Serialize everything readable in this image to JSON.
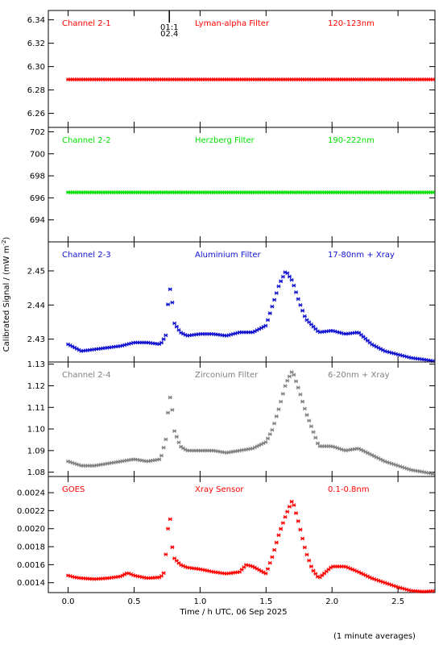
{
  "ylabel": "Calibrated Signal / (mW m",
  "ylabel_sup": "-2",
  "ylabel_end": ")",
  "xlabel": "Time / h UTC, 06 Sep 2025",
  "footnote": "(1 minute averages)",
  "event_marker": {
    "x": 0.767,
    "label1": "01:1",
    "label2": "02.4"
  },
  "xaxis": {
    "min": -0.15,
    "max": 2.78,
    "ticks": [
      0.0,
      0.5,
      1.0,
      1.5,
      2.0,
      2.5
    ],
    "tick_labels": [
      "0.0",
      "0.5",
      "1.0",
      "1.5",
      "2.0",
      "2.5"
    ]
  },
  "chart_data": [
    {
      "type": "scatter",
      "label": "Channel 2-1",
      "filter": "Lyman-alpha Filter",
      "band": "120-123nm",
      "color": "#ff0000",
      "ylim": [
        6.248,
        6.348
      ],
      "yticks": [
        6.26,
        6.28,
        6.3,
        6.32,
        6.34
      ],
      "ytick_labels": [
        "6.26",
        "6.28",
        "6.30",
        "6.32",
        "6.34"
      ],
      "series": [
        {
          "x": [
            0.0,
            2.78
          ],
          "y": [
            6.289,
            6.289
          ]
        }
      ]
    },
    {
      "type": "scatter",
      "label": "Channel 2-2",
      "filter": "Herzberg Filter",
      "band": "190-222nm",
      "color": "#00e000",
      "ylim": [
        692.0,
        702.4
      ],
      "yticks": [
        694,
        696,
        698,
        700,
        702
      ],
      "ytick_labels": [
        "694",
        "696",
        "698",
        "700",
        "702"
      ],
      "series": [
        {
          "x": [
            0.0,
            2.78
          ],
          "y": [
            696.5,
            696.5
          ]
        }
      ]
    },
    {
      "type": "scatter",
      "label": "Channel 2-3",
      "filter": "Aluminium Filter",
      "band": "17-80nm + Xray",
      "color": "#1010d0",
      "ylim": [
        2.4233,
        2.4585
      ],
      "yticks": [
        2.43,
        2.44,
        2.45
      ],
      "ytick_labels": [
        "2.43",
        "2.44",
        "2.45"
      ],
      "series": [
        {
          "x": [
            0.0,
            0.05,
            0.1,
            0.2,
            0.3,
            0.4,
            0.5,
            0.6,
            0.7,
            0.74,
            0.76,
            0.78,
            0.8,
            0.85,
            0.9,
            1.0,
            1.1,
            1.2,
            1.3,
            1.4,
            1.5,
            1.55,
            1.6,
            1.65,
            1.7,
            1.75,
            1.8,
            1.9,
            2.0,
            2.1,
            2.2,
            2.3,
            2.4,
            2.5,
            2.6,
            2.7,
            2.78
          ],
          "y": [
            2.4285,
            2.4275,
            2.4265,
            2.427,
            2.4275,
            2.428,
            2.429,
            2.429,
            2.4285,
            2.431,
            2.442,
            2.446,
            2.435,
            2.432,
            2.431,
            2.4315,
            2.4315,
            2.431,
            2.432,
            2.432,
            2.434,
            2.44,
            2.446,
            2.45,
            2.447,
            2.441,
            2.436,
            2.432,
            2.4325,
            2.4315,
            2.432,
            2.4285,
            2.4265,
            2.4255,
            2.4245,
            2.424,
            2.4235
          ]
        }
      ]
    },
    {
      "type": "scatter",
      "label": "Channel 2-4",
      "filter": "Zirconium Filter",
      "band": "6-20nm + Xray",
      "color": "#808080",
      "ylim": [
        1.078,
        1.131
      ],
      "yticks": [
        1.08,
        1.09,
        1.1,
        1.11,
        1.12,
        1.13
      ],
      "ytick_labels": [
        "1.08",
        "1.09",
        "1.10",
        "1.11",
        "1.12",
        "1.13"
      ],
      "series": [
        {
          "x": [
            0.0,
            0.05,
            0.1,
            0.2,
            0.3,
            0.4,
            0.5,
            0.6,
            0.7,
            0.74,
            0.76,
            0.78,
            0.8,
            0.85,
            0.9,
            1.0,
            1.1,
            1.2,
            1.3,
            1.4,
            1.5,
            1.55,
            1.6,
            1.65,
            1.7,
            1.75,
            1.8,
            1.9,
            2.0,
            2.1,
            2.2,
            2.3,
            2.4,
            2.5,
            2.6,
            2.7,
            2.78
          ],
          "y": [
            1.085,
            1.084,
            1.083,
            1.083,
            1.084,
            1.085,
            1.086,
            1.085,
            1.086,
            1.095,
            1.11,
            1.117,
            1.1,
            1.092,
            1.09,
            1.09,
            1.09,
            1.089,
            1.09,
            1.091,
            1.094,
            1.1,
            1.11,
            1.121,
            1.127,
            1.118,
            1.108,
            1.092,
            1.092,
            1.09,
            1.091,
            1.088,
            1.085,
            1.083,
            1.081,
            1.08,
            1.079
          ]
        }
      ]
    },
    {
      "type": "scatter",
      "label": "GOES",
      "filter": "Xray Sensor",
      "band": "0.1-0.8nm",
      "color": "#ff0000",
      "ylim": [
        0.00129,
        0.00258
      ],
      "yticks": [
        0.0014,
        0.0016,
        0.0018,
        0.002,
        0.0022,
        0.0024
      ],
      "ytick_labels": [
        "0.0014",
        "0.0016",
        "0.0018",
        "0.0020",
        "0.0022",
        "0.0024"
      ],
      "series": [
        {
          "x": [
            0.0,
            0.05,
            0.1,
            0.2,
            0.3,
            0.4,
            0.45,
            0.5,
            0.6,
            0.7,
            0.73,
            0.75,
            0.77,
            0.78,
            0.8,
            0.85,
            0.9,
            1.0,
            1.1,
            1.2,
            1.3,
            1.35,
            1.4,
            1.5,
            1.55,
            1.6,
            1.65,
            1.7,
            1.75,
            1.8,
            1.85,
            1.9,
            2.0,
            2.1,
            2.2,
            2.3,
            2.4,
            2.5,
            2.6,
            2.7,
            2.78
          ],
          "y": [
            0.00148,
            0.00146,
            0.00145,
            0.00144,
            0.00145,
            0.00147,
            0.00151,
            0.00148,
            0.00145,
            0.00146,
            0.00152,
            0.0019,
            0.0022,
            0.0019,
            0.00168,
            0.0016,
            0.00157,
            0.00155,
            0.00152,
            0.0015,
            0.00152,
            0.0016,
            0.00158,
            0.0015,
            0.0017,
            0.00195,
            0.00215,
            0.00232,
            0.00205,
            0.00175,
            0.00155,
            0.00145,
            0.00158,
            0.00158,
            0.00152,
            0.00145,
            0.0014,
            0.00135,
            0.00131,
            0.0013,
            0.00131
          ]
        }
      ]
    }
  ]
}
